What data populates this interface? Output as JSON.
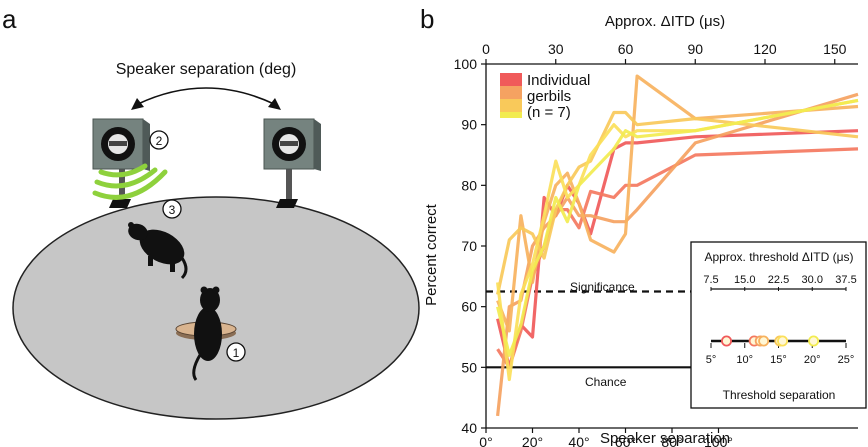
{
  "panel_a": {
    "letter": "a",
    "speaker_label": "Speaker separation (deg)",
    "markers": [
      "2",
      "3",
      "1"
    ]
  },
  "panel_b": {
    "letter": "b",
    "significance_label": "Significance",
    "chance_label": "Chance"
  },
  "colors": {
    "gerbil_series": [
      "#f05a5a",
      "#f47860",
      "#f5a261",
      "#f7b25e",
      "#f9c95a",
      "#fbe05a",
      "#f2ec50"
    ],
    "arena": "#c6c6c6",
    "speaker": "#6f7d7a",
    "sound_waves": "#8ed13c",
    "platform": "#d9b48f"
  },
  "chart_data": {
    "type": "line",
    "title": "",
    "xlabel": "Speaker separation",
    "x2label": "Approx. ΔITD (μs)",
    "ylabel": "Percent correct",
    "xlim": [
      0,
      160
    ],
    "x2lim": [
      0,
      160
    ],
    "ylim": [
      40,
      100
    ],
    "x_ticks": [
      "0°",
      "20°",
      "40°",
      "60°",
      "80°",
      "100°"
    ],
    "x_tick_values": [
      0,
      20,
      40,
      60,
      80,
      100
    ],
    "x2_ticks": [
      "0",
      "30",
      "60",
      "90",
      "120",
      "150"
    ],
    "y_ticks": [
      "40",
      "50",
      "60",
      "70",
      "80",
      "90",
      "100"
    ],
    "reference_lines": [
      {
        "label": "Significance",
        "y": 62.5,
        "style": "dashed"
      },
      {
        "label": "Chance",
        "y": 50,
        "style": "solid"
      }
    ],
    "legend": {
      "lines": [
        "Individual",
        "gerbils",
        "(n = 7)"
      ],
      "position": "top-left"
    },
    "x": [
      5,
      10,
      15,
      20,
      25,
      30,
      35,
      40,
      45,
      55,
      60,
      65,
      90,
      160
    ],
    "series": [
      {
        "values": [
          58,
          50,
          57,
          55,
          78,
          75,
          80,
          77,
          72,
          86,
          87,
          87,
          88,
          89
        ]
      },
      {
        "values": [
          53,
          50,
          56,
          65,
          70,
          76,
          76,
          73,
          79,
          78,
          80,
          80,
          85,
          86
        ]
      },
      {
        "values": [
          42,
          60,
          61,
          70,
          73,
          75,
          78,
          75,
          75,
          74,
          74,
          76,
          87,
          95
        ]
      },
      {
        "values": [
          61,
          56,
          75,
          64,
          74,
          80,
          82,
          77,
          71,
          69,
          72,
          98,
          91,
          93
        ]
      },
      {
        "values": [
          62,
          71,
          73,
          72,
          68,
          76,
          80,
          83,
          84,
          92,
          92,
          90,
          91,
          88
        ]
      },
      {
        "values": [
          64,
          48,
          62,
          67,
          75,
          84,
          78,
          80,
          85,
          90,
          88,
          89,
          89,
          94
        ]
      },
      {
        "values": [
          60,
          52,
          57,
          66,
          70,
          78,
          74,
          80,
          82,
          86,
          89,
          88,
          89,
          94
        ]
      }
    ],
    "inset": {
      "title": "Approx. threshold ΔITD (μs)",
      "top_ticks": [
        "7.5",
        "15.0",
        "22.5",
        "30.0",
        "37.5"
      ],
      "bottom_ticks": [
        "5°",
        "10°",
        "15°",
        "20°",
        "25°"
      ],
      "xlabel": "Threshold separation",
      "xlim": [
        5,
        25
      ],
      "threshold_points": [
        7.3,
        11.4,
        12.3,
        12.8,
        15.2,
        15.6,
        20.2
      ]
    }
  }
}
